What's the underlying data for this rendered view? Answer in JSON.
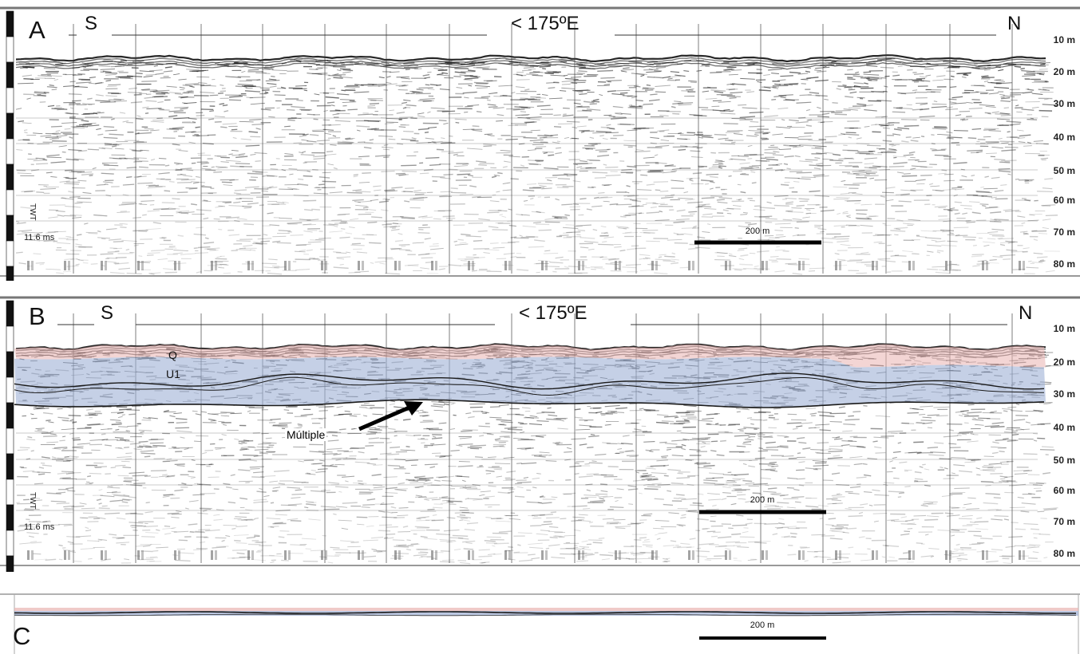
{
  "panels": {
    "a": {
      "letter": "A",
      "south": "S",
      "north": "N",
      "longitude": "< 175ºE",
      "depth_ticks": [
        "10 m",
        "20 m",
        "30 m",
        "40 m",
        "50 m",
        "60 m",
        "70 m",
        "80 m"
      ],
      "twt_label": "TWT",
      "twt_value": "11.6 ms",
      "scale_label": "200 m"
    },
    "b": {
      "letter": "B",
      "south": "S",
      "north": "N",
      "longitude": "< 175ºE",
      "depth_ticks": [
        "10 m",
        "20 m",
        "30 m",
        "40 m",
        "50 m",
        "60 m",
        "70 m",
        "80 m"
      ],
      "twt_label": "TWT",
      "twt_value": "11.6 ms",
      "scale_label": "200 m",
      "units": {
        "q": "Q",
        "u1": "U1"
      },
      "annotation": "Múltiple"
    },
    "c": {
      "letter": "C",
      "scale_label": "200 m"
    }
  },
  "colors": {
    "unit_q": "#e9b3b0",
    "unit_u1": "#9fb1d6",
    "horizon": "#1a1a1a",
    "paper": "#ffffff"
  }
}
